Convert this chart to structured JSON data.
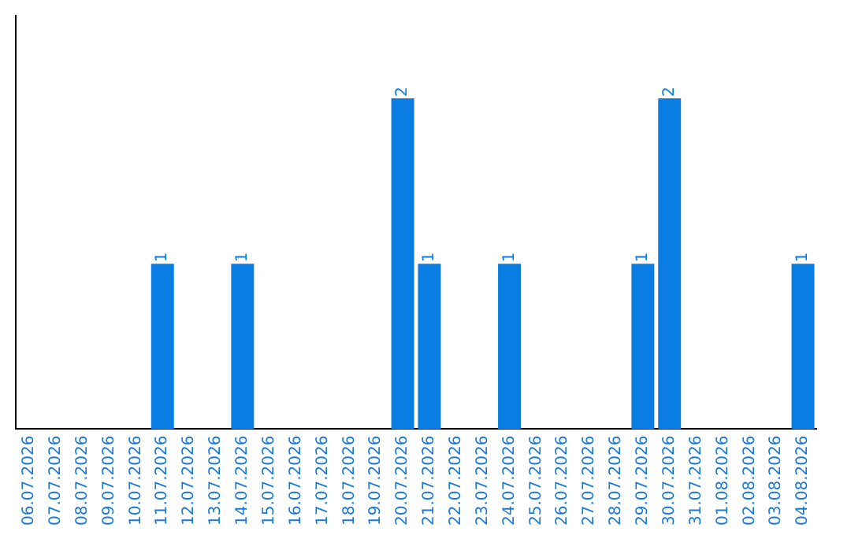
{
  "chart_data": {
    "type": "bar",
    "categories": [
      "06.07.2026",
      "07.07.2026",
      "08.07.2026",
      "09.07.2026",
      "10.07.2026",
      "11.07.2026",
      "12.07.2026",
      "13.07.2026",
      "14.07.2026",
      "15.07.2026",
      "16.07.2026",
      "17.07.2026",
      "18.07.2026",
      "19.07.2026",
      "20.07.2026",
      "21.07.2026",
      "22.07.2026",
      "23.07.2026",
      "24.07.2026",
      "25.07.2026",
      "26.07.2026",
      "27.07.2026",
      "28.07.2026",
      "29.07.2026",
      "30.07.2026",
      "31.07.2026",
      "01.08.2026",
      "02.08.2026",
      "03.08.2026",
      "04.08.2026"
    ],
    "values": [
      0,
      0,
      0,
      0,
      0,
      1,
      0,
      0,
      1,
      0,
      0,
      0,
      0,
      0,
      2,
      1,
      0,
      0,
      1,
      0,
      0,
      0,
      0,
      1,
      2,
      0,
      0,
      0,
      0,
      1
    ],
    "value_labels": [
      null,
      null,
      null,
      null,
      null,
      "1",
      null,
      null,
      "1",
      null,
      null,
      null,
      null,
      null,
      "2",
      "1",
      null,
      null,
      "1",
      null,
      null,
      null,
      null,
      "1",
      "2",
      null,
      null,
      null,
      null,
      "1"
    ],
    "color": "#0a7de3",
    "grid": false,
    "legend": false,
    "tick_labels": "x"
  }
}
